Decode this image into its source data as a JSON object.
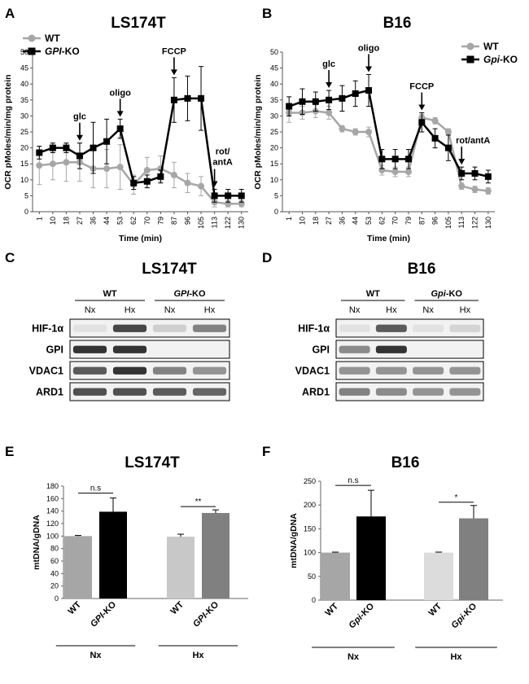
{
  "panels": {
    "A": {
      "letter": "A",
      "title": "LS174T",
      "chart_data": {
        "type": "line",
        "xlabel": "Time (min)",
        "ylabel": "OCR pMoles/min/mg protein",
        "x": [
          "1",
          "10",
          "18",
          "27",
          "36",
          "44",
          "53",
          "62",
          "70",
          "79",
          "87",
          "96",
          "105",
          "113",
          "122",
          "130"
        ],
        "ylim": [
          0,
          50
        ],
        "yticks": [
          0,
          5,
          10,
          15,
          20,
          25,
          30,
          35,
          40,
          45,
          50
        ],
        "series": [
          {
            "name": "WT",
            "color": "#a6a6a6",
            "marker": "circle",
            "values": [
              14.5,
              15,
              15.5,
              15.5,
              13.5,
              13.5,
              14,
              8.5,
              13,
              13.5,
              11.5,
              9,
              8,
              3,
              2.5,
              2.5
            ],
            "errors": [
              6,
              5,
              6,
              6,
              6,
              6,
              7,
              3,
              4,
              4,
              4,
              3,
              3,
              1.5,
              1,
              1
            ]
          },
          {
            "name": "GPI-KO",
            "color": "#000000",
            "marker": "square",
            "values": [
              18.5,
              20,
              20,
              17.5,
              20,
              22,
              26,
              9,
              9.5,
              11,
              35,
              35.5,
              35.5,
              5,
              5,
              5
            ],
            "errors": [
              2,
              1.5,
              1.5,
              4,
              8,
              7,
              3,
              2,
              2,
              2,
              7,
              7,
              10,
              2,
              2,
              2
            ]
          }
        ],
        "legend": [
          {
            "plain": "WT",
            "italic": "",
            "suffix": ""
          },
          {
            "plain": "",
            "italic": "GPI",
            "suffix": "-KO"
          }
        ],
        "annotations": [
          {
            "text": "glc",
            "x_index": 3
          },
          {
            "text": "oligo",
            "x_index": 6
          },
          {
            "text": "FCCP",
            "x_index": 10
          },
          {
            "text": "rot/",
            "text2": "antA",
            "x_index": 13
          }
        ]
      }
    },
    "B": {
      "letter": "B",
      "title": "B16",
      "chart_data": {
        "type": "line",
        "xlabel": "Time (min)",
        "ylabel": "OCR pMoles/min/mg protein",
        "x": [
          "1",
          "10",
          "18",
          "27",
          "36",
          "44",
          "53",
          "62",
          "70",
          "79",
          "87",
          "96",
          "105",
          "113",
          "122",
          "130"
        ],
        "ylim": [
          0,
          50
        ],
        "yticks": [
          0,
          5,
          10,
          15,
          20,
          25,
          30,
          35,
          40,
          45,
          50
        ],
        "series": [
          {
            "name": "WT",
            "color": "#a6a6a6",
            "marker": "circle",
            "values": [
              31,
              31,
              31.5,
              31,
              26,
              25,
              25,
              13,
              12.5,
              12.5,
              29.5,
              28.5,
              25,
              8,
              7,
              6.5
            ],
            "errors": [
              3,
              2,
              2,
              2,
              1,
              1,
              1.5,
              1.5,
              1.5,
              1.5,
              1,
              1,
              1,
              1,
              1,
              1
            ]
          },
          {
            "name": "Gpi-KO",
            "color": "#000000",
            "marker": "square",
            "values": [
              33,
              34.5,
              34.5,
              35,
              35.5,
              37,
              38,
              16.5,
              16.5,
              16.5,
              28,
              23,
              20,
              12,
              12,
              11
            ],
            "errors": [
              3,
              4,
              3,
              3,
              4,
              4,
              5,
              3,
              3,
              3,
              3,
              3,
              4,
              2,
              2,
              2
            ]
          }
        ],
        "legend": [
          {
            "plain": "WT",
            "italic": "",
            "suffix": ""
          },
          {
            "plain": "",
            "italic": "Gpi",
            "suffix": "-KO"
          }
        ],
        "annotations": [
          {
            "text": "glc",
            "x_index": 3
          },
          {
            "text": "oligo",
            "x_index": 6
          },
          {
            "text": "FCCP",
            "x_index": 10
          },
          {
            "text": "rot/antA",
            "text2": "",
            "x_index": 13
          }
        ]
      }
    },
    "C": {
      "letter": "C",
      "title": "LS174T",
      "groups": [
        {
          "plain": "WT",
          "italic": "",
          "suffix": ""
        },
        {
          "plain": "",
          "italic": "GPI",
          "suffix": "-KO"
        }
      ],
      "conditions": [
        "Nx",
        "Hx",
        "Nx",
        "Hx"
      ],
      "rows": [
        {
          "label": "HIF-1α",
          "bands": [
            0.05,
            0.85,
            0.15,
            0.55
          ]
        },
        {
          "label": "GPI",
          "bands": [
            0.95,
            0.95,
            0,
            0
          ]
        },
        {
          "label": "VDAC1",
          "bands": [
            0.75,
            0.95,
            0.55,
            0.45
          ]
        },
        {
          "label": "ARD1",
          "bands": [
            0.8,
            0.8,
            0.75,
            0.7
          ]
        }
      ]
    },
    "D": {
      "letter": "D",
      "title": "B16",
      "groups": [
        {
          "plain": "WT",
          "italic": "",
          "suffix": ""
        },
        {
          "plain": "",
          "italic": "Gpi",
          "suffix": "-KO"
        }
      ],
      "conditions": [
        "Nx",
        "Hx",
        "Nx",
        "Hx"
      ],
      "rows": [
        {
          "label": "HIF-1α",
          "bands": [
            0.05,
            0.75,
            0.05,
            0.12
          ]
        },
        {
          "label": "GPI",
          "bands": [
            0.5,
            0.95,
            0,
            0
          ]
        },
        {
          "label": "VDAC1",
          "bands": [
            0.45,
            0.45,
            0.45,
            0.45
          ]
        },
        {
          "label": "ARD1",
          "bands": [
            0.55,
            0.5,
            0.45,
            0.45
          ]
        }
      ]
    },
    "E": {
      "letter": "E",
      "title": "LS174T",
      "chart_data": {
        "type": "bar",
        "ylabel": "mtDNA/gDNA",
        "ylim": [
          0,
          180
        ],
        "yticks": [
          0,
          20,
          40,
          60,
          80,
          100,
          120,
          140,
          160,
          180
        ],
        "categories": [
          {
            "plain": "WT",
            "italic": "",
            "suffix": ""
          },
          {
            "plain": "",
            "italic": "GPI",
            "suffix": "-KO"
          },
          {
            "plain": "WT",
            "italic": "",
            "suffix": ""
          },
          {
            "plain": "",
            "italic": "GPI",
            "suffix": "-KO"
          }
        ],
        "values": [
          100,
          139,
          99,
          137
        ],
        "errors": [
          1,
          22,
          4,
          5
        ],
        "colors": [
          "#a6a6a6",
          "#000000",
          "#c8c8c8",
          "#808080"
        ],
        "groups": [
          "Nx",
          "Hx"
        ],
        "significance": [
          "n.s",
          "**"
        ]
      }
    },
    "F": {
      "letter": "F",
      "title": "B16",
      "chart_data": {
        "type": "bar",
        "ylabel": "mtDNA/gDNA",
        "ylim": [
          0,
          250
        ],
        "yticks": [
          0,
          50,
          100,
          150,
          200,
          250
        ],
        "categories": [
          {
            "plain": "WT",
            "italic": "",
            "suffix": ""
          },
          {
            "plain": "",
            "italic": "Gpi",
            "suffix": "-KO"
          },
          {
            "plain": "WT",
            "italic": "",
            "suffix": ""
          },
          {
            "plain": "",
            "italic": "Gpi",
            "suffix": "-KO"
          }
        ],
        "values": [
          100,
          176,
          100,
          172
        ],
        "errors": [
          1,
          55,
          1,
          27
        ],
        "colors": [
          "#a6a6a6",
          "#000000",
          "#dcdcdc",
          "#808080"
        ],
        "groups": [
          "Nx",
          "Hx"
        ],
        "significance": [
          "n.s",
          "*"
        ]
      }
    }
  }
}
